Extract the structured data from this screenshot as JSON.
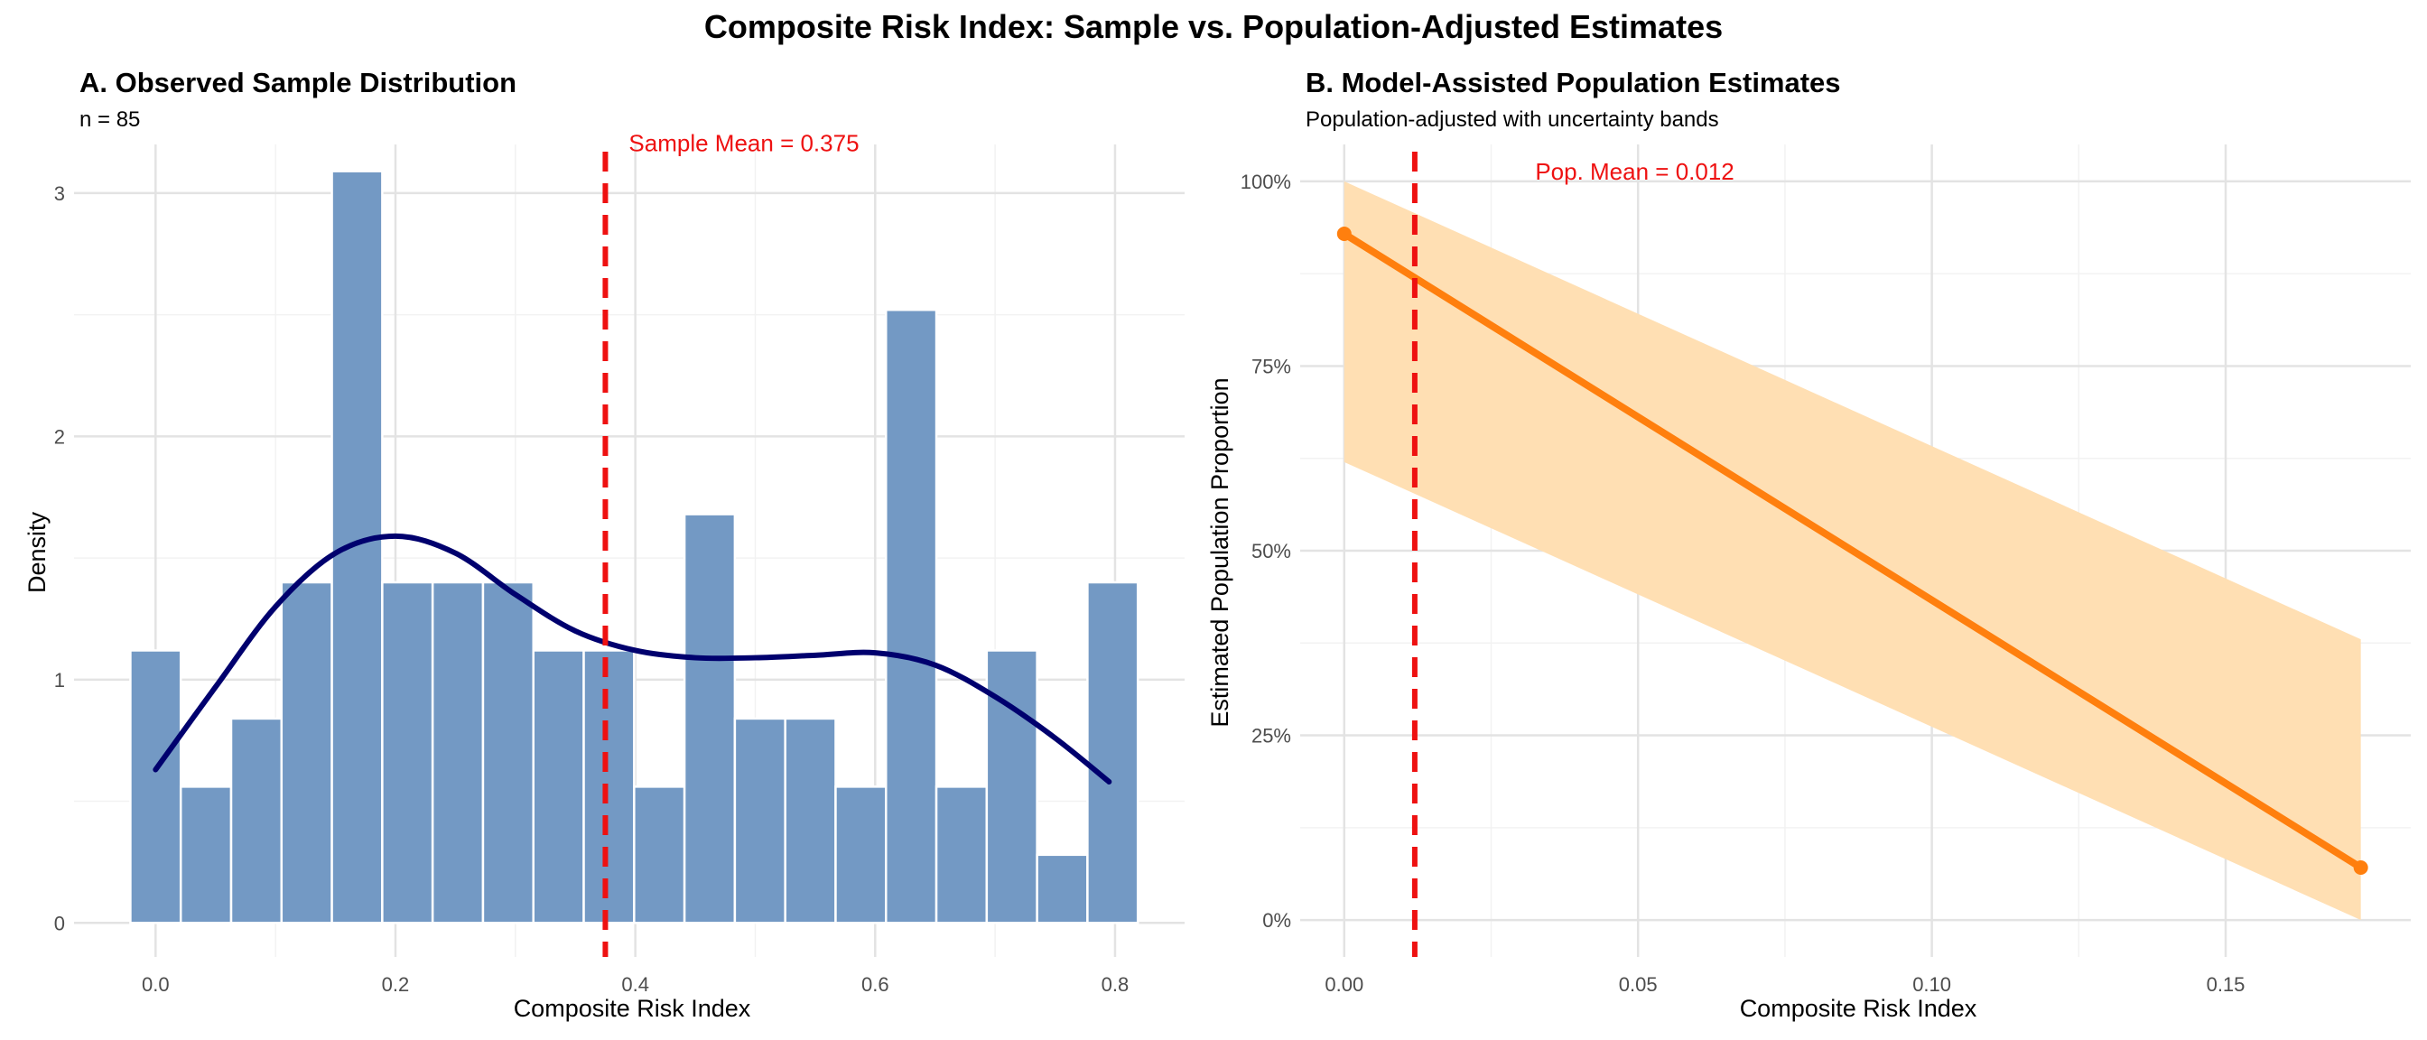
{
  "title": "Composite Risk Index: Sample vs. Population-Adjusted Estimates",
  "colors": {
    "bar_fill": "#7399c4",
    "bar_stroke": "#ffffff",
    "density_line": "#00006e",
    "mean_line": "#ee1111",
    "estimate_line": "#ff7f0e",
    "band_fill": "#ffdfb3",
    "grid": "#e3e3e3"
  },
  "chart_data": [
    {
      "panel": "A",
      "type": "bar",
      "title": "A. Observed Sample Distribution",
      "subtitle": "n = 85",
      "xlabel": "Composite Risk Index",
      "ylabel": "Density",
      "xlim": [
        -0.068,
        0.858
      ],
      "ylim": [
        -0.14,
        3.2
      ],
      "x_ticks": [
        0.0,
        0.2,
        0.4,
        0.6,
        0.8
      ],
      "x_tick_labels": [
        "0.0",
        "0.2",
        "0.4",
        "0.6",
        "0.8"
      ],
      "y_ticks": [
        0,
        1,
        2,
        3
      ],
      "y_tick_labels": [
        "0",
        "1",
        "2",
        "3"
      ],
      "bin_width": 0.042,
      "bin_centers": [
        0.0,
        0.042,
        0.084,
        0.126,
        0.168,
        0.21,
        0.252,
        0.294,
        0.336,
        0.378,
        0.42,
        0.462,
        0.504,
        0.546,
        0.588,
        0.63,
        0.672,
        0.714,
        0.756,
        0.798
      ],
      "densities": [
        1.12,
        0.56,
        0.84,
        1.4,
        3.09,
        1.4,
        1.4,
        1.4,
        1.12,
        1.12,
        0.56,
        1.68,
        0.84,
        0.84,
        0.56,
        2.52,
        0.56,
        1.12,
        0.28,
        1.4
      ],
      "density_curve": {
        "x": [
          0.0,
          0.05,
          0.1,
          0.15,
          0.2,
          0.25,
          0.3,
          0.35,
          0.4,
          0.45,
          0.5,
          0.55,
          0.6,
          0.65,
          0.7,
          0.75,
          0.795
        ],
        "y": [
          0.63,
          0.97,
          1.3,
          1.52,
          1.59,
          1.52,
          1.35,
          1.2,
          1.12,
          1.09,
          1.09,
          1.1,
          1.11,
          1.06,
          0.93,
          0.76,
          0.58
        ]
      },
      "mean_line": {
        "value": 0.375,
        "label": "Sample Mean = 0.375"
      }
    },
    {
      "panel": "B",
      "type": "line",
      "title": "B. Model-Assisted Population Estimates",
      "subtitle": "Population-adjusted with uncertainty bands",
      "xlabel": "Composite Risk Index",
      "ylabel": "Estimated Population Proportion",
      "xlim": [
        -0.0075,
        0.1815
      ],
      "ylim": [
        -0.05,
        1.05
      ],
      "x_ticks": [
        0.0,
        0.05,
        0.1,
        0.15
      ],
      "x_tick_labels": [
        "0.00",
        "0.05",
        "0.10",
        "0.15"
      ],
      "y_ticks": [
        0,
        0.25,
        0.5,
        0.75,
        1.0
      ],
      "y_tick_labels": [
        "0%",
        "25%",
        "50%",
        "75%",
        "100%"
      ],
      "series": [
        {
          "x": [
            0.0,
            0.173
          ],
          "y": [
            0.929,
            0.071
          ],
          "lower": [
            0.62,
            0.0
          ],
          "upper": [
            1.0,
            0.38
          ]
        }
      ],
      "mean_line": {
        "value": 0.012,
        "label": "Pop. Mean = 0.012"
      }
    }
  ]
}
